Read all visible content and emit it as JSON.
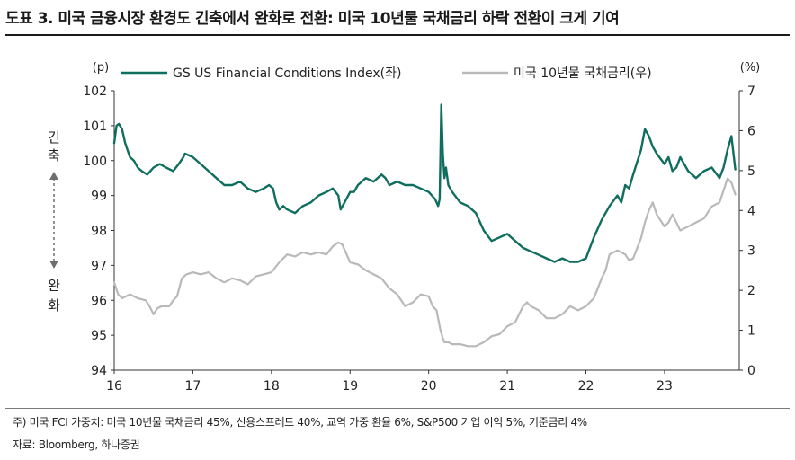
{
  "title": "도표 3. 미국 금융시장 환경도 긴축에서 완화로 전환: 미국 10년물 국채금리 하락 전환이 크게 기여",
  "footnotes": {
    "note": "주) 미국 FCI 가중치: 미국 10년물 국채금리 45%, 신용스프레드 40%, 교역 가중 환율 6%, S&P500 기업 이익 5%, 기준금리 4%",
    "source": "자료: Bloomberg, 하나증권"
  },
  "chart_data": {
    "type": "line",
    "left_unit": "(p)",
    "right_unit": "(%)",
    "annotations": {
      "top": "긴축",
      "bottom": "완화"
    },
    "x_ticks": [
      "16",
      "17",
      "18",
      "19",
      "20",
      "21",
      "22",
      "23"
    ],
    "xlim": [
      2016.0,
      2023.95
    ],
    "ylim_left": [
      94,
      102
    ],
    "yticks_left": [
      "102",
      "101",
      "100",
      "99",
      "98",
      "97",
      "96",
      "95",
      "94"
    ],
    "ylim_right": [
      0,
      7
    ],
    "yticks_right": [
      "7",
      "6",
      "5",
      "4",
      "3",
      "2",
      "1",
      "0"
    ],
    "grid": false,
    "legend_position": "top",
    "series": [
      {
        "name": "GS US Financial Conditions Index(좌)",
        "axis": "left",
        "color": "#0f6e5e",
        "x": [
          2016.0,
          2016.03,
          2016.06,
          2016.1,
          2016.14,
          2016.2,
          2016.25,
          2016.3,
          2016.35,
          2016.42,
          2016.5,
          2016.58,
          2016.66,
          2016.75,
          2016.82,
          2016.88,
          2016.9,
          2016.95,
          2017.0,
          2017.1,
          2017.2,
          2017.3,
          2017.4,
          2017.5,
          2017.6,
          2017.7,
          2017.8,
          2017.9,
          2017.97,
          2018.02,
          2018.06,
          2018.1,
          2018.15,
          2018.2,
          2018.3,
          2018.4,
          2018.5,
          2018.6,
          2018.7,
          2018.78,
          2018.85,
          2018.88,
          2018.93,
          2019.0,
          2019.05,
          2019.1,
          2019.2,
          2019.3,
          2019.4,
          2019.45,
          2019.5,
          2019.6,
          2019.7,
          2019.8,
          2019.9,
          2020.0,
          2020.08,
          2020.12,
          2020.14,
          2020.16,
          2020.18,
          2020.2,
          2020.22,
          2020.25,
          2020.3,
          2020.4,
          2020.5,
          2020.6,
          2020.7,
          2020.8,
          2020.9,
          2021.0,
          2021.1,
          2021.2,
          2021.3,
          2021.4,
          2021.5,
          2021.6,
          2021.7,
          2021.8,
          2021.9,
          2022.0,
          2022.05,
          2022.1,
          2022.2,
          2022.3,
          2022.4,
          2022.45,
          2022.5,
          2022.55,
          2022.6,
          2022.7,
          2022.75,
          2022.8,
          2022.85,
          2022.9,
          2023.0,
          2023.05,
          2023.1,
          2023.15,
          2023.2,
          2023.3,
          2023.4,
          2023.5,
          2023.6,
          2023.7,
          2023.75,
          2023.8,
          2023.85,
          2023.9
        ],
        "values": [
          100.5,
          101.0,
          101.05,
          100.9,
          100.5,
          100.1,
          100.0,
          99.8,
          99.7,
          99.6,
          99.8,
          99.9,
          99.8,
          99.7,
          99.9,
          100.1,
          100.2,
          100.15,
          100.1,
          99.9,
          99.7,
          99.5,
          99.3,
          99.3,
          99.4,
          99.2,
          99.1,
          99.2,
          99.3,
          99.2,
          98.8,
          98.6,
          98.7,
          98.6,
          98.5,
          98.7,
          98.8,
          99.0,
          99.1,
          99.2,
          99.0,
          98.6,
          98.8,
          99.1,
          99.1,
          99.3,
          99.5,
          99.4,
          99.6,
          99.5,
          99.3,
          99.4,
          99.3,
          99.3,
          99.2,
          99.1,
          98.9,
          98.7,
          98.9,
          101.6,
          100.2,
          99.5,
          99.8,
          99.3,
          99.1,
          98.8,
          98.7,
          98.5,
          98.0,
          97.7,
          97.8,
          97.9,
          97.7,
          97.5,
          97.4,
          97.3,
          97.2,
          97.1,
          97.2,
          97.1,
          97.1,
          97.2,
          97.5,
          97.8,
          98.3,
          98.7,
          99.0,
          98.8,
          99.3,
          99.2,
          99.6,
          100.3,
          100.9,
          100.7,
          100.4,
          100.2,
          99.9,
          100.1,
          99.7,
          99.8,
          100.1,
          99.7,
          99.5,
          99.7,
          99.8,
          99.5,
          99.8,
          100.3,
          100.7,
          99.75
        ]
      },
      {
        "name": "미국 10년물 국채금리(우)",
        "axis": "right",
        "color": "#b9b9b9",
        "x": [
          2016.0,
          2016.05,
          2016.1,
          2016.2,
          2016.3,
          2016.4,
          2016.45,
          2016.5,
          2016.55,
          2016.6,
          2016.7,
          2016.75,
          2016.8,
          2016.86,
          2016.92,
          2017.0,
          2017.1,
          2017.2,
          2017.3,
          2017.4,
          2017.5,
          2017.6,
          2017.7,
          2017.8,
          2017.9,
          2018.0,
          2018.1,
          2018.2,
          2018.3,
          2018.4,
          2018.5,
          2018.6,
          2018.7,
          2018.78,
          2018.85,
          2018.9,
          2019.0,
          2019.1,
          2019.2,
          2019.3,
          2019.4,
          2019.5,
          2019.6,
          2019.7,
          2019.8,
          2019.9,
          2020.0,
          2020.05,
          2020.1,
          2020.15,
          2020.18,
          2020.2,
          2020.25,
          2020.3,
          2020.4,
          2020.5,
          2020.6,
          2020.7,
          2020.8,
          2020.9,
          2021.0,
          2021.1,
          2021.2,
          2021.25,
          2021.3,
          2021.4,
          2021.5,
          2021.6,
          2021.7,
          2021.8,
          2021.9,
          2022.0,
          2022.1,
          2022.2,
          2022.25,
          2022.3,
          2022.4,
          2022.5,
          2022.55,
          2022.6,
          2022.7,
          2022.75,
          2022.8,
          2022.85,
          2022.9,
          2023.0,
          2023.05,
          2023.1,
          2023.2,
          2023.3,
          2023.4,
          2023.5,
          2023.6,
          2023.7,
          2023.75,
          2023.8,
          2023.85,
          2023.9
        ],
        "values": [
          2.2,
          1.9,
          1.8,
          1.9,
          1.8,
          1.75,
          1.6,
          1.4,
          1.55,
          1.6,
          1.6,
          1.75,
          1.85,
          2.3,
          2.4,
          2.45,
          2.4,
          2.45,
          2.3,
          2.2,
          2.3,
          2.25,
          2.15,
          2.35,
          2.4,
          2.45,
          2.7,
          2.9,
          2.85,
          2.95,
          2.9,
          2.95,
          2.9,
          3.1,
          3.2,
          3.15,
          2.7,
          2.65,
          2.5,
          2.4,
          2.3,
          2.05,
          1.9,
          1.6,
          1.7,
          1.9,
          1.85,
          1.6,
          1.5,
          1.0,
          0.8,
          0.7,
          0.7,
          0.65,
          0.65,
          0.6,
          0.6,
          0.7,
          0.85,
          0.9,
          1.1,
          1.2,
          1.6,
          1.7,
          1.6,
          1.5,
          1.3,
          1.3,
          1.4,
          1.6,
          1.5,
          1.6,
          1.8,
          2.3,
          2.5,
          2.9,
          3.0,
          2.9,
          2.75,
          2.8,
          3.3,
          3.7,
          4.0,
          4.2,
          3.9,
          3.6,
          3.7,
          3.9,
          3.5,
          3.6,
          3.7,
          3.8,
          4.1,
          4.2,
          4.5,
          4.8,
          4.7,
          4.4
        ]
      }
    ]
  }
}
